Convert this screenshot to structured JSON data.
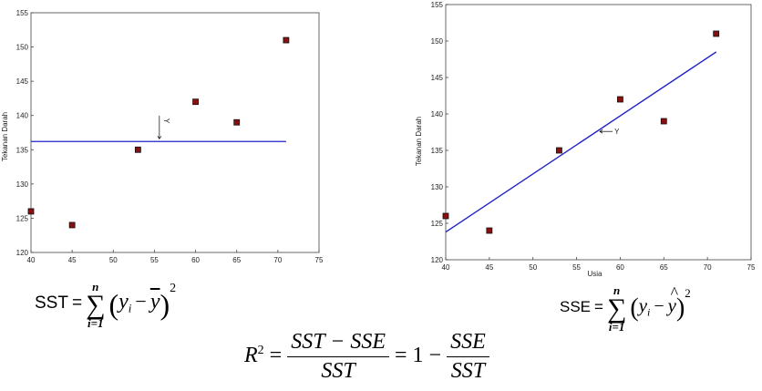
{
  "chart_data": [
    {
      "type": "scatter",
      "title": "",
      "xlabel": "",
      "ylabel": "Tekanan Darah",
      "xlim": [
        40,
        75
      ],
      "ylim": [
        120,
        155
      ],
      "xticks": [
        40,
        45,
        50,
        55,
        60,
        65,
        70,
        75
      ],
      "yticks": [
        120,
        125,
        130,
        135,
        140,
        145,
        150,
        155
      ],
      "grid": false,
      "points": [
        {
          "x": 40,
          "y": 126
        },
        {
          "x": 45,
          "y": 124
        },
        {
          "x": 53,
          "y": 135
        },
        {
          "x": 60,
          "y": 142
        },
        {
          "x": 65,
          "y": 139
        },
        {
          "x": 71,
          "y": 151
        }
      ],
      "reference_line": {
        "x0": 40,
        "x1": 71,
        "y0": 136.2,
        "y1": 136.2
      },
      "annotation": {
        "text": "Y",
        "x": 55.6,
        "y": 139.3
      }
    },
    {
      "type": "scatter",
      "title": "",
      "xlabel": "Usia",
      "ylabel": "Tekanan Darah",
      "xlim": [
        40,
        75
      ],
      "ylim": [
        120,
        155
      ],
      "xticks": [
        40,
        45,
        50,
        55,
        60,
        65,
        70,
        75
      ],
      "yticks": [
        120,
        125,
        130,
        135,
        140,
        145,
        150,
        155
      ],
      "grid": false,
      "points": [
        {
          "x": 40,
          "y": 126
        },
        {
          "x": 45,
          "y": 124
        },
        {
          "x": 53,
          "y": 135
        },
        {
          "x": 60,
          "y": 142
        },
        {
          "x": 65,
          "y": 139
        },
        {
          "x": 71,
          "y": 151
        }
      ],
      "reference_line": {
        "x0": 40,
        "x1": 71,
        "y0": 123.8,
        "y1": 148.5
      },
      "annotation": {
        "text": "Y",
        "x": 58.5,
        "y": 137.6
      }
    }
  ],
  "formulas": {
    "sst_label": "SST",
    "sse_label": "SSE",
    "equals": "=",
    "sum_top": "n",
    "sum_bottom": "i=1",
    "sum_symbol": "∑",
    "y": "y",
    "y_sub": "i",
    "minus": "−",
    "ybar": "y",
    "yhat": "y",
    "hat": "^",
    "square": "2",
    "r2_base": "R",
    "r2_num": "SST − SSE",
    "r2_den": "SST",
    "one_minus": "= 1 −",
    "r2_num2": "SSE",
    "r2_den2": "SST"
  },
  "colors": {
    "line": "#1f22c9",
    "point_fill": "#8a1010",
    "point_edge": "#111111",
    "axis": "#444444"
  }
}
